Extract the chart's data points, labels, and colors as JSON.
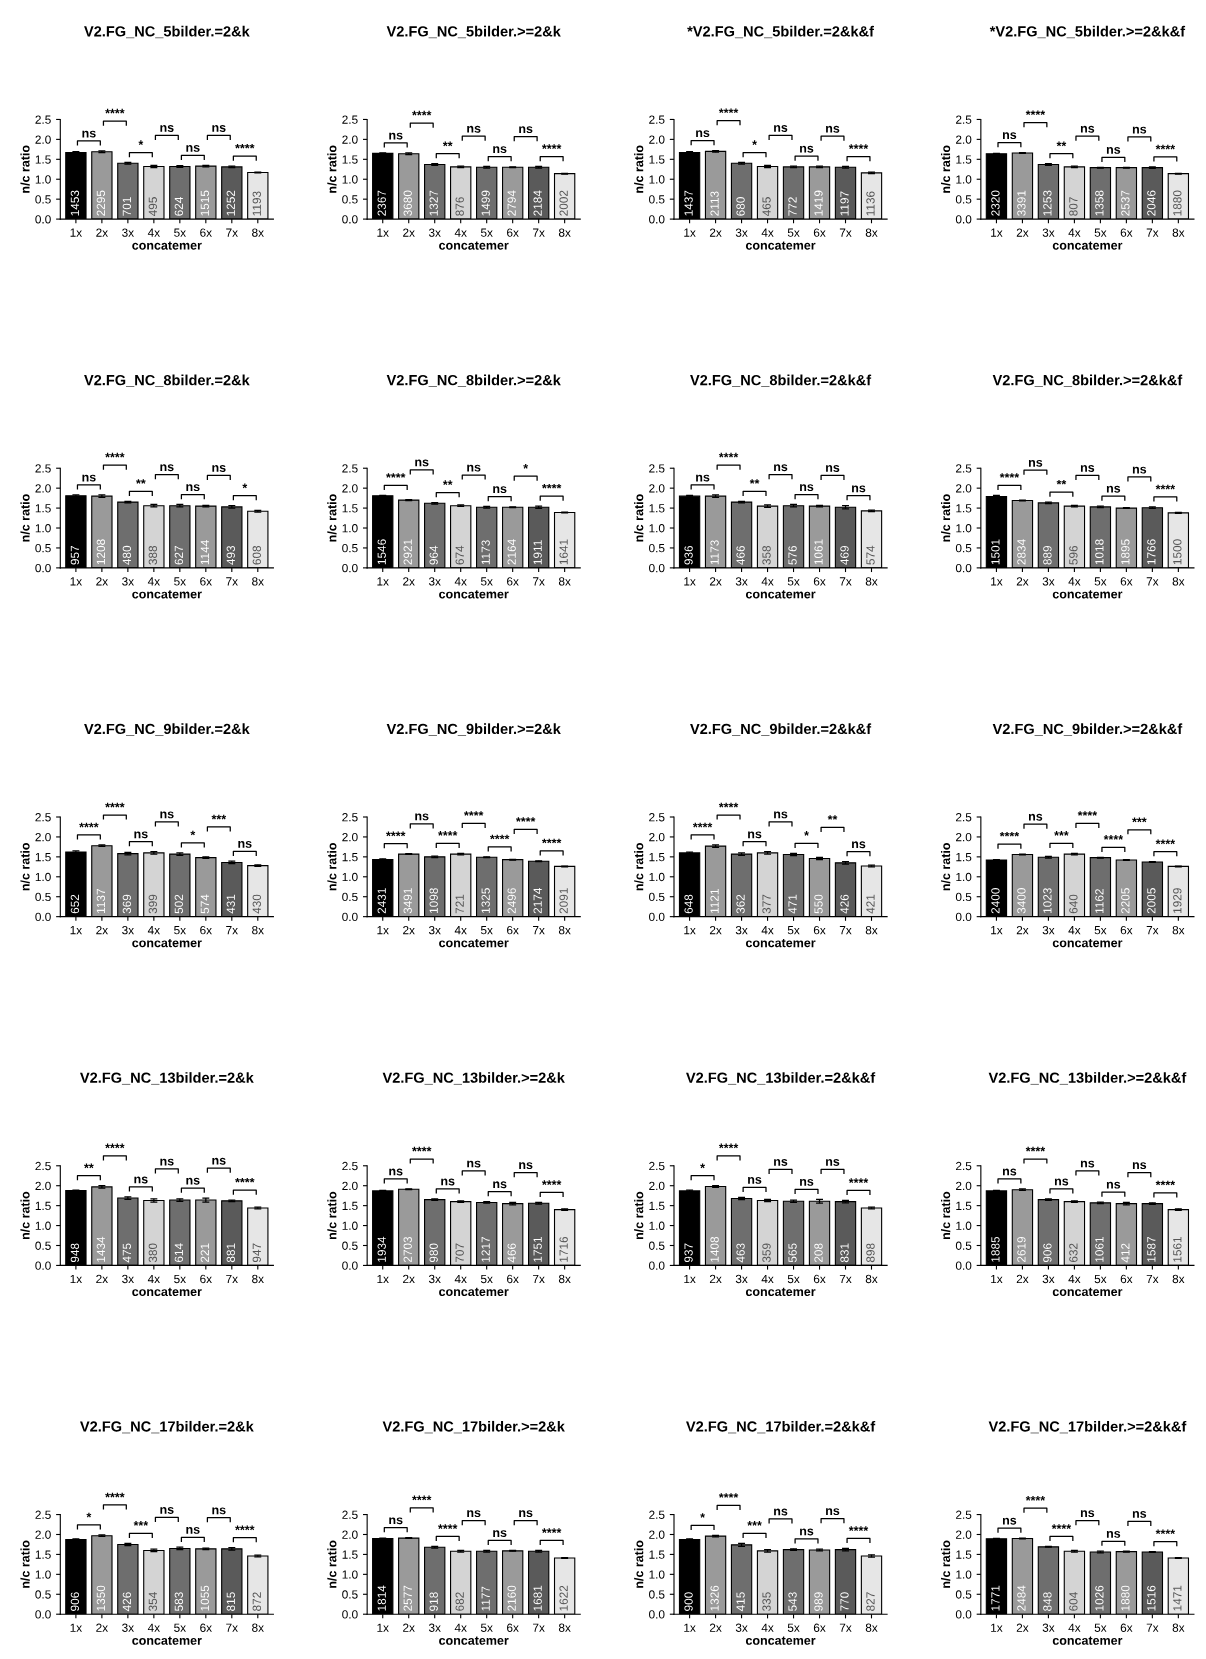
{
  "chart_data": [
    {
      "type": "bar",
      "title": "V2.FG_NC_5bilder.=2&k",
      "xlabel": "concatemer",
      "ylabel": "n/c ratio",
      "categories": [
        "1x",
        "2x",
        "3x",
        "4x",
        "5x",
        "6x",
        "7x",
        "8x"
      ],
      "values": [
        1.67,
        1.69,
        1.4,
        1.32,
        1.32,
        1.33,
        1.31,
        1.17
      ],
      "errors": [
        0.02,
        0.02,
        0.02,
        0.03,
        0.02,
        0.02,
        0.02,
        0.01
      ],
      "colors": [
        "#000000",
        "#9a9a9a",
        "#6e6e6e",
        "#d4d4d4",
        "#6e6e6e",
        "#9a9a9a",
        "#5a5a5a",
        "#e6e6e6"
      ],
      "annotations": [
        "ns",
        "****",
        "*",
        "ns",
        "ns",
        "ns",
        "****",
        "1453",
        "2295",
        "701",
        "495",
        "624",
        "1515",
        "1252",
        "1193"
      ],
      "ylim": [
        0,
        2.5
      ],
      "yticks": [
        {
          "value": 0,
          "label": "0.0"
        },
        0.5,
        {
          "value": 1,
          "label": "1.0"
        },
        1.5,
        {
          "value": 2,
          "label": "2.0"
        },
        2.5
      ]
    },
    {
      "type": "bar",
      "title": "V2.FG_NC_5bilder.>=2&k",
      "xlabel": "concatemer",
      "ylabel": "n/c ratio",
      "categories": [
        "1x",
        "2x",
        "3x",
        "4x",
        "5x",
        "6x",
        "7x",
        "8x"
      ],
      "values": [
        1.65,
        1.64,
        1.37,
        1.31,
        1.3,
        1.3,
        1.3,
        1.14
      ],
      "errors": [
        0.01,
        0.02,
        0.02,
        0.02,
        0.02,
        0.01,
        0.02,
        0.01
      ],
      "colors": [
        "#000000",
        "#9a9a9a",
        "#6e6e6e",
        "#d4d4d4",
        "#6e6e6e",
        "#9a9a9a",
        "#5a5a5a",
        "#e6e6e6"
      ],
      "annotations": [
        "ns",
        "****",
        "**",
        "ns",
        "ns",
        "ns",
        "****",
        "2367",
        "3680",
        "1327",
        "876",
        "1499",
        "2794",
        "2184",
        "2002"
      ],
      "ylim": [
        0,
        2.5
      ],
      "yticks": [
        {
          "value": 0,
          "label": "0.0"
        },
        0.5,
        {
          "value": 1,
          "label": "1.0"
        },
        1.5,
        {
          "value": 2,
          "label": "2.0"
        },
        2.5
      ]
    },
    {
      "type": "bar",
      "title": "*V2.FG_NC_5bilder.=2&k&f",
      "xlabel": "concatemer",
      "ylabel": "n/c ratio",
      "categories": [
        "1x",
        "2x",
        "3x",
        "4x",
        "5x",
        "6x",
        "7x",
        "8x"
      ],
      "values": [
        1.67,
        1.7,
        1.4,
        1.32,
        1.31,
        1.31,
        1.3,
        1.16
      ],
      "errors": [
        0.02,
        0.02,
        0.02,
        0.03,
        0.02,
        0.02,
        0.02,
        0.02
      ],
      "colors": [
        "#000000",
        "#9a9a9a",
        "#6e6e6e",
        "#d4d4d4",
        "#6e6e6e",
        "#9a9a9a",
        "#5a5a5a",
        "#e6e6e6"
      ],
      "annotations": [
        "ns",
        "****",
        "*",
        "ns",
        "ns",
        "ns",
        "****",
        "1437",
        "2113",
        "680",
        "465",
        "772",
        "1419",
        "1197",
        "1136"
      ],
      "ylim": [
        0,
        2.5
      ],
      "yticks": [
        {
          "value": 0,
          "label": "0.0"
        },
        0.5,
        {
          "value": 1,
          "label": "1.0"
        },
        1.5,
        {
          "value": 2,
          "label": "2.0"
        },
        2.5
      ]
    },
    {
      "type": "bar",
      "title": "*V2.FG_NC_5bilder.>=2&k&f",
      "xlabel": "concatemer",
      "ylabel": "n/c ratio",
      "categories": [
        "1x",
        "2x",
        "3x",
        "4x",
        "5x",
        "6x",
        "7x",
        "8x"
      ],
      "values": [
        1.64,
        1.66,
        1.37,
        1.31,
        1.29,
        1.29,
        1.29,
        1.14
      ],
      "errors": [
        0.01,
        0.01,
        0.02,
        0.02,
        0.01,
        0.01,
        0.02,
        0.01
      ],
      "colors": [
        "#000000",
        "#9a9a9a",
        "#6e6e6e",
        "#d4d4d4",
        "#6e6e6e",
        "#9a9a9a",
        "#5a5a5a",
        "#e6e6e6"
      ],
      "annotations": [
        "ns",
        "****",
        "**",
        "ns",
        "ns",
        "ns",
        "****",
        "2320",
        "3391",
        "1253",
        "807",
        "1358",
        "2537",
        "2046",
        "1880"
      ],
      "ylim": [
        0,
        2.5
      ],
      "yticks": [
        {
          "value": 0,
          "label": "0.0"
        },
        0.5,
        {
          "value": 1,
          "label": "1.0"
        },
        1.5,
        {
          "value": 2,
          "label": "2.0"
        },
        2.5
      ]
    },
    {
      "type": "bar",
      "title": "V2.FG_NC_8bilder.=2&k",
      "xlabel": "concatemer",
      "ylabel": "n/c ratio",
      "categories": [
        "1x",
        "2x",
        "3x",
        "4x",
        "5x",
        "6x",
        "7x",
        "8x"
      ],
      "values": [
        1.81,
        1.8,
        1.65,
        1.56,
        1.56,
        1.55,
        1.53,
        1.42
      ],
      "errors": [
        0.02,
        0.03,
        0.02,
        0.03,
        0.03,
        0.02,
        0.03,
        0.02
      ],
      "colors": [
        "#000000",
        "#9a9a9a",
        "#6e6e6e",
        "#d4d4d4",
        "#6e6e6e",
        "#9a9a9a",
        "#5a5a5a",
        "#e6e6e6"
      ],
      "annotations": [
        "ns",
        "****",
        "**",
        "ns",
        "ns",
        "ns",
        "*",
        "957",
        "1208",
        "480",
        "388",
        "627",
        "1144",
        "493",
        "608"
      ],
      "ylim": [
        0,
        2.5
      ],
      "yticks": [
        {
          "value": 0,
          "label": "0.0"
        },
        0.5,
        {
          "value": 1,
          "label": "1.0"
        },
        1.5,
        {
          "value": 2,
          "label": "2.0"
        },
        2.5
      ]
    },
    {
      "type": "bar",
      "title": "V2.FG_NC_8bilder.>=2&k",
      "xlabel": "concatemer",
      "ylabel": "n/c ratio",
      "categories": [
        "1x",
        "2x",
        "3x",
        "4x",
        "5x",
        "6x",
        "7x",
        "8x"
      ],
      "values": [
        1.81,
        1.7,
        1.62,
        1.56,
        1.52,
        1.52,
        1.52,
        1.39
      ],
      "errors": [
        0.01,
        0.01,
        0.02,
        0.02,
        0.02,
        0.01,
        0.03,
        0.01
      ],
      "colors": [
        "#000000",
        "#9a9a9a",
        "#6e6e6e",
        "#d4d4d4",
        "#6e6e6e",
        "#9a9a9a",
        "#5a5a5a",
        "#e6e6e6"
      ],
      "annotations": [
        "****",
        "ns",
        "**",
        "ns",
        "ns",
        "*",
        "****",
        "1546",
        "2921",
        "964",
        "674",
        "1173",
        "2164",
        "1911",
        "1641"
      ],
      "ylim": [
        0,
        2.5
      ],
      "yticks": [
        {
          "value": 0,
          "label": "0.0"
        },
        0.5,
        {
          "value": 1,
          "label": "1.0"
        },
        1.5,
        {
          "value": 2,
          "label": "2.0"
        },
        2.5
      ]
    },
    {
      "type": "bar",
      "title": "V2.FG_NC_8bilder.=2&k&f",
      "xlabel": "concatemer",
      "ylabel": "n/c ratio",
      "categories": [
        "1x",
        "2x",
        "3x",
        "4x",
        "5x",
        "6x",
        "7x",
        "8x"
      ],
      "values": [
        1.8,
        1.8,
        1.65,
        1.55,
        1.56,
        1.55,
        1.52,
        1.43
      ],
      "errors": [
        0.02,
        0.03,
        0.02,
        0.03,
        0.03,
        0.02,
        0.04,
        0.02
      ],
      "colors": [
        "#000000",
        "#9a9a9a",
        "#6e6e6e",
        "#d4d4d4",
        "#6e6e6e",
        "#9a9a9a",
        "#5a5a5a",
        "#e6e6e6"
      ],
      "annotations": [
        "ns",
        "****",
        "**",
        "ns",
        "ns",
        "ns",
        "ns",
        "936",
        "1173",
        "466",
        "358",
        "576",
        "1061",
        "469",
        "574"
      ],
      "ylim": [
        0,
        2.5
      ],
      "yticks": [
        {
          "value": 0,
          "label": "0.0"
        },
        0.5,
        {
          "value": 1,
          "label": "1.0"
        },
        1.5,
        {
          "value": 2,
          "label": "2.0"
        },
        2.5
      ]
    },
    {
      "type": "bar",
      "title": "V2.FG_NC_8bilder.>=2&k&f",
      "xlabel": "concatemer",
      "ylabel": "n/c ratio",
      "categories": [
        "1x",
        "2x",
        "3x",
        "4x",
        "5x",
        "6x",
        "7x",
        "8x"
      ],
      "values": [
        1.79,
        1.69,
        1.63,
        1.55,
        1.53,
        1.5,
        1.51,
        1.38
      ],
      "errors": [
        0.03,
        0.01,
        0.02,
        0.02,
        0.02,
        0.01,
        0.02,
        0.01
      ],
      "colors": [
        "#000000",
        "#9a9a9a",
        "#6e6e6e",
        "#d4d4d4",
        "#6e6e6e",
        "#9a9a9a",
        "#5a5a5a",
        "#e6e6e6"
      ],
      "annotations": [
        "****",
        "ns",
        "**",
        "ns",
        "ns",
        "ns",
        "****",
        "1501",
        "2834",
        "889",
        "596",
        "1018",
        "1895",
        "1766",
        "1500"
      ],
      "ylim": [
        0,
        2.5
      ],
      "yticks": [
        {
          "value": 0,
          "label": "0.0"
        },
        0.5,
        {
          "value": 1,
          "label": "1.0"
        },
        1.5,
        {
          "value": 2,
          "label": "2.0"
        },
        2.5
      ]
    },
    {
      "type": "bar",
      "title": "V2.FG_NC_9bilder.=2&k",
      "xlabel": "concatemer",
      "ylabel": "n/c ratio",
      "categories": [
        "1x",
        "2x",
        "3x",
        "4x",
        "5x",
        "6x",
        "7x",
        "8x"
      ],
      "values": [
        1.62,
        1.78,
        1.58,
        1.6,
        1.57,
        1.48,
        1.36,
        1.28
      ],
      "errors": [
        0.03,
        0.02,
        0.03,
        0.03,
        0.03,
        0.02,
        0.03,
        0.02
      ],
      "colors": [
        "#000000",
        "#9a9a9a",
        "#6e6e6e",
        "#d4d4d4",
        "#6e6e6e",
        "#9a9a9a",
        "#5a5a5a",
        "#e6e6e6"
      ],
      "annotations": [
        "****",
        "****",
        "ns",
        "ns",
        "*",
        "***",
        "ns",
        "652",
        "1137",
        "369",
        "399",
        "502",
        "574",
        "431",
        "430"
      ],
      "ylim": [
        0,
        2.5
      ],
      "yticks": [
        {
          "value": 0,
          "label": "0.0"
        },
        0.5,
        {
          "value": 1,
          "label": "1.0"
        },
        1.5,
        {
          "value": 2,
          "label": "2.0"
        },
        2.5
      ]
    },
    {
      "type": "bar",
      "title": "V2.FG_NC_9bilder.>=2&k",
      "xlabel": "concatemer",
      "ylabel": "n/c ratio",
      "categories": [
        "1x",
        "2x",
        "3x",
        "4x",
        "5x",
        "6x",
        "7x",
        "8x"
      ],
      "values": [
        1.43,
        1.57,
        1.5,
        1.57,
        1.49,
        1.43,
        1.39,
        1.26
      ],
      "errors": [
        0.02,
        0.01,
        0.02,
        0.02,
        0.01,
        0.01,
        0.01,
        0.01
      ],
      "colors": [
        "#000000",
        "#9a9a9a",
        "#6e6e6e",
        "#d4d4d4",
        "#6e6e6e",
        "#9a9a9a",
        "#5a5a5a",
        "#e6e6e6"
      ],
      "annotations": [
        "****",
        "ns",
        "****",
        "****",
        "****",
        "****",
        "****",
        "2431",
        "3491",
        "1098",
        "721",
        "1325",
        "2496",
        "2174",
        "2091"
      ],
      "ylim": [
        0,
        2.5
      ],
      "yticks": [
        {
          "value": 0,
          "label": "0.0"
        },
        0.5,
        {
          "value": 1,
          "label": "1.0"
        },
        1.5,
        {
          "value": 2,
          "label": "2.0"
        },
        2.5
      ]
    },
    {
      "type": "bar",
      "title": "V2.FG_NC_9bilder.=2&k&f",
      "xlabel": "concatemer",
      "ylabel": "n/c ratio",
      "categories": [
        "1x",
        "2x",
        "3x",
        "4x",
        "5x",
        "6x",
        "7x",
        "8x"
      ],
      "values": [
        1.6,
        1.77,
        1.57,
        1.6,
        1.56,
        1.46,
        1.35,
        1.27
      ],
      "errors": [
        0.02,
        0.03,
        0.03,
        0.03,
        0.03,
        0.03,
        0.03,
        0.02
      ],
      "colors": [
        "#000000",
        "#9a9a9a",
        "#6e6e6e",
        "#d4d4d4",
        "#6e6e6e",
        "#9a9a9a",
        "#5a5a5a",
        "#e6e6e6"
      ],
      "annotations": [
        "****",
        "****",
        "ns",
        "ns",
        "*",
        "**",
        "ns",
        "648",
        "1121",
        "362",
        "377",
        "471",
        "550",
        "426",
        "421"
      ],
      "ylim": [
        0,
        2.5
      ],
      "yticks": [
        {
          "value": 0,
          "label": "0.0"
        },
        0.5,
        {
          "value": 1,
          "label": "1.0"
        },
        1.5,
        {
          "value": 2,
          "label": "2.0"
        },
        2.5
      ]
    },
    {
      "type": "bar",
      "title": "V2.FG_NC_9bilder.>=2&k&f",
      "xlabel": "concatemer",
      "ylabel": "n/c ratio",
      "categories": [
        "1x",
        "2x",
        "3x",
        "4x",
        "5x",
        "6x",
        "7x",
        "8x"
      ],
      "values": [
        1.42,
        1.56,
        1.49,
        1.57,
        1.48,
        1.42,
        1.37,
        1.26
      ],
      "errors": [
        0.01,
        0.01,
        0.02,
        0.02,
        0.01,
        0.01,
        0.01,
        0.01
      ],
      "colors": [
        "#000000",
        "#9a9a9a",
        "#6e6e6e",
        "#d4d4d4",
        "#6e6e6e",
        "#9a9a9a",
        "#5a5a5a",
        "#e6e6e6"
      ],
      "annotations": [
        "****",
        "ns",
        "***",
        "****",
        "****",
        "***",
        "****",
        "2400",
        "3400",
        "1023",
        "640",
        "1162",
        "2205",
        "2005",
        "1929"
      ],
      "ylim": [
        0,
        2.5
      ],
      "yticks": [
        {
          "value": 0,
          "label": "0.0"
        },
        0.5,
        {
          "value": 1,
          "label": "1.0"
        },
        1.5,
        {
          "value": 2,
          "label": "2.0"
        },
        2.5
      ]
    },
    {
      "type": "bar",
      "title": "V2.FG_NC_13bilder.=2&k",
      "xlabel": "concatemer",
      "ylabel": "n/c ratio",
      "categories": [
        "1x",
        "2x",
        "3x",
        "4x",
        "5x",
        "6x",
        "7x",
        "8x"
      ],
      "values": [
        1.88,
        1.97,
        1.69,
        1.63,
        1.64,
        1.64,
        1.62,
        1.44
      ],
      "errors": [
        0.01,
        0.03,
        0.03,
        0.04,
        0.03,
        0.05,
        0.02,
        0.02
      ],
      "colors": [
        "#000000",
        "#9a9a9a",
        "#6e6e6e",
        "#d4d4d4",
        "#6e6e6e",
        "#9a9a9a",
        "#5a5a5a",
        "#e6e6e6"
      ],
      "annotations": [
        "**",
        "****",
        "ns",
        "ns",
        "ns",
        "ns",
        "****",
        "948",
        "1434",
        "475",
        "380",
        "614",
        "221",
        "881",
        "947"
      ],
      "ylim": [
        0,
        2.5
      ],
      "yticks": [
        {
          "value": 0,
          "label": "0.0"
        },
        0.5,
        {
          "value": 1,
          "label": "1.0"
        },
        1.5,
        {
          "value": 2,
          "label": "2.0"
        },
        2.5
      ]
    },
    {
      "type": "bar",
      "title": "V2.FG_NC_13bilder.>=2&k",
      "xlabel": "concatemer",
      "ylabel": "n/c ratio",
      "categories": [
        "1x",
        "2x",
        "3x",
        "4x",
        "5x",
        "6x",
        "7x",
        "8x"
      ],
      "values": [
        1.87,
        1.91,
        1.65,
        1.6,
        1.58,
        1.55,
        1.56,
        1.4
      ],
      "errors": [
        0.01,
        0.01,
        0.02,
        0.02,
        0.02,
        0.03,
        0.02,
        0.02
      ],
      "colors": [
        "#000000",
        "#9a9a9a",
        "#6e6e6e",
        "#d4d4d4",
        "#6e6e6e",
        "#9a9a9a",
        "#5a5a5a",
        "#e6e6e6"
      ],
      "annotations": [
        "ns",
        "****",
        "ns",
        "ns",
        "ns",
        "ns",
        "****",
        "1934",
        "2703",
        "980",
        "707",
        "1217",
        "466",
        "1751",
        "1716"
      ],
      "ylim": [
        0,
        2.5
      ],
      "yticks": [
        {
          "value": 0,
          "label": "0.0"
        },
        0.5,
        {
          "value": 1,
          "label": "1.0"
        },
        1.5,
        {
          "value": 2,
          "label": "2.0"
        },
        2.5
      ]
    },
    {
      "type": "bar",
      "title": "V2.FG_NC_13bilder.=2&k&f",
      "xlabel": "concatemer",
      "ylabel": "n/c ratio",
      "categories": [
        "1x",
        "2x",
        "3x",
        "4x",
        "5x",
        "6x",
        "7x",
        "8x"
      ],
      "values": [
        1.87,
        1.98,
        1.68,
        1.63,
        1.61,
        1.61,
        1.6,
        1.44
      ],
      "errors": [
        0.02,
        0.02,
        0.03,
        0.03,
        0.03,
        0.05,
        0.03,
        0.02
      ],
      "colors": [
        "#000000",
        "#9a9a9a",
        "#6e6e6e",
        "#d4d4d4",
        "#6e6e6e",
        "#9a9a9a",
        "#5a5a5a",
        "#e6e6e6"
      ],
      "annotations": [
        "*",
        "****",
        "ns",
        "ns",
        "ns",
        "ns",
        "****",
        "937",
        "1408",
        "463",
        "359",
        "565",
        "208",
        "831",
        "898"
      ],
      "ylim": [
        0,
        2.5
      ],
      "yticks": [
        {
          "value": 0,
          "label": "0.0"
        },
        0.5,
        {
          "value": 1,
          "label": "1.0"
        },
        1.5,
        {
          "value": 2,
          "label": "2.0"
        },
        2.5
      ]
    },
    {
      "type": "bar",
      "title": "V2.FG_NC_13bilder.>=2&k&f",
      "xlabel": "concatemer",
      "ylabel": "n/c ratio",
      "categories": [
        "1x",
        "2x",
        "3x",
        "4x",
        "5x",
        "6x",
        "7x",
        "8x"
      ],
      "values": [
        1.87,
        1.9,
        1.65,
        1.6,
        1.57,
        1.55,
        1.55,
        1.4
      ],
      "errors": [
        0.01,
        0.02,
        0.02,
        0.02,
        0.02,
        0.03,
        0.02,
        0.02
      ],
      "colors": [
        "#000000",
        "#9a9a9a",
        "#6e6e6e",
        "#d4d4d4",
        "#6e6e6e",
        "#9a9a9a",
        "#5a5a5a",
        "#e6e6e6"
      ],
      "annotations": [
        "ns",
        "****",
        "ns",
        "ns",
        "ns",
        "ns",
        "****",
        "1885",
        "2619",
        "906",
        "632",
        "1061",
        "412",
        "1587",
        "1561"
      ],
      "ylim": [
        0,
        2.5
      ],
      "yticks": [
        {
          "value": 0,
          "label": "0.0"
        },
        0.5,
        {
          "value": 1,
          "label": "1.0"
        },
        1.5,
        {
          "value": 2,
          "label": "2.0"
        },
        2.5
      ]
    },
    {
      "type": "bar",
      "title": "V2.FG_NC_17bilder.=2&k",
      "xlabel": "concatemer",
      "ylabel": "n/c ratio",
      "categories": [
        "1x",
        "2x",
        "3x",
        "4x",
        "5x",
        "6x",
        "7x",
        "8x"
      ],
      "values": [
        1.87,
        1.97,
        1.75,
        1.6,
        1.65,
        1.64,
        1.64,
        1.46
      ],
      "errors": [
        0.02,
        0.02,
        0.03,
        0.03,
        0.03,
        0.02,
        0.03,
        0.02
      ],
      "colors": [
        "#000000",
        "#9a9a9a",
        "#6e6e6e",
        "#d4d4d4",
        "#6e6e6e",
        "#9a9a9a",
        "#5a5a5a",
        "#e6e6e6"
      ],
      "annotations": [
        "*",
        "****",
        "***",
        "ns",
        "ns",
        "ns",
        "****",
        "906",
        "1350",
        "426",
        "354",
        "583",
        "1055",
        "815",
        "872"
      ],
      "ylim": [
        0,
        2.5
      ],
      "yticks": [
        {
          "value": 0,
          "label": "0.0"
        },
        0.5,
        {
          "value": 1,
          "label": "1.0"
        },
        1.5,
        {
          "value": 2,
          "label": "2.0"
        },
        2.5
      ]
    },
    {
      "type": "bar",
      "title": "V2.FG_NC_17bilder.>=2&k",
      "xlabel": "concatemer",
      "ylabel": "n/c ratio",
      "categories": [
        "1x",
        "2x",
        "3x",
        "4x",
        "5x",
        "6x",
        "7x",
        "8x"
      ],
      "values": [
        1.9,
        1.91,
        1.68,
        1.58,
        1.58,
        1.59,
        1.58,
        1.41
      ],
      "errors": [
        0.01,
        0.01,
        0.02,
        0.02,
        0.02,
        0.01,
        0.02,
        0.01
      ],
      "colors": [
        "#000000",
        "#9a9a9a",
        "#6e6e6e",
        "#d4d4d4",
        "#6e6e6e",
        "#9a9a9a",
        "#5a5a5a",
        "#e6e6e6"
      ],
      "annotations": [
        "ns",
        "****",
        "****",
        "ns",
        "ns",
        "ns",
        "****",
        "1814",
        "2577",
        "918",
        "682",
        "1177",
        "2160",
        "1681",
        "1622"
      ],
      "ylim": [
        0,
        2.5
      ],
      "yticks": [
        {
          "value": 0,
          "label": "0.0"
        },
        0.5,
        {
          "value": 1,
          "label": "1.0"
        },
        1.5,
        {
          "value": 2,
          "label": "2.0"
        },
        2.5
      ]
    },
    {
      "type": "bar",
      "title": "V2.FG_NC_17bilder.=2&k&f",
      "xlabel": "concatemer",
      "ylabel": "n/c ratio",
      "categories": [
        "1x",
        "2x",
        "3x",
        "4x",
        "5x",
        "6x",
        "7x",
        "8x"
      ],
      "values": [
        1.87,
        1.96,
        1.74,
        1.59,
        1.62,
        1.61,
        1.62,
        1.46
      ],
      "errors": [
        0.02,
        0.02,
        0.04,
        0.03,
        0.02,
        0.02,
        0.03,
        0.03
      ],
      "colors": [
        "#000000",
        "#9a9a9a",
        "#6e6e6e",
        "#d4d4d4",
        "#6e6e6e",
        "#9a9a9a",
        "#5a5a5a",
        "#e6e6e6"
      ],
      "annotations": [
        "*",
        "****",
        "***",
        "ns",
        "ns",
        "ns",
        "****",
        "900",
        "1326",
        "415",
        "335",
        "543",
        "989",
        "770",
        "827"
      ],
      "ylim": [
        0,
        2.5
      ],
      "yticks": [
        {
          "value": 0,
          "label": "0.0"
        },
        0.5,
        {
          "value": 1,
          "label": "1.0"
        },
        1.5,
        {
          "value": 2,
          "label": "2.0"
        },
        2.5
      ]
    },
    {
      "type": "bar",
      "title": "V2.FG_NC_17bilder.>=2&k&f",
      "xlabel": "concatemer",
      "ylabel": "n/c ratio",
      "categories": [
        "1x",
        "2x",
        "3x",
        "4x",
        "5x",
        "6x",
        "7x",
        "8x"
      ],
      "values": [
        1.89,
        1.9,
        1.69,
        1.58,
        1.56,
        1.57,
        1.56,
        1.41
      ],
      "errors": [
        0.01,
        0.01,
        0.01,
        0.02,
        0.02,
        0.01,
        0.01,
        0.01
      ],
      "colors": [
        "#000000",
        "#9a9a9a",
        "#6e6e6e",
        "#d4d4d4",
        "#6e6e6e",
        "#9a9a9a",
        "#5a5a5a",
        "#e6e6e6"
      ],
      "annotations": [
        "ns",
        "****",
        "****",
        "ns",
        "ns",
        "ns",
        "****",
        "1771",
        "2484",
        "848",
        "604",
        "1026",
        "1880",
        "1516",
        "1471"
      ],
      "ylim": [
        0,
        2.5
      ],
      "yticks": [
        {
          "value": 0,
          "label": "0.0"
        },
        0.5,
        {
          "value": 1,
          "label": "1.0"
        },
        1.5,
        {
          "value": 2,
          "label": "2.0"
        },
        2.5
      ]
    }
  ]
}
